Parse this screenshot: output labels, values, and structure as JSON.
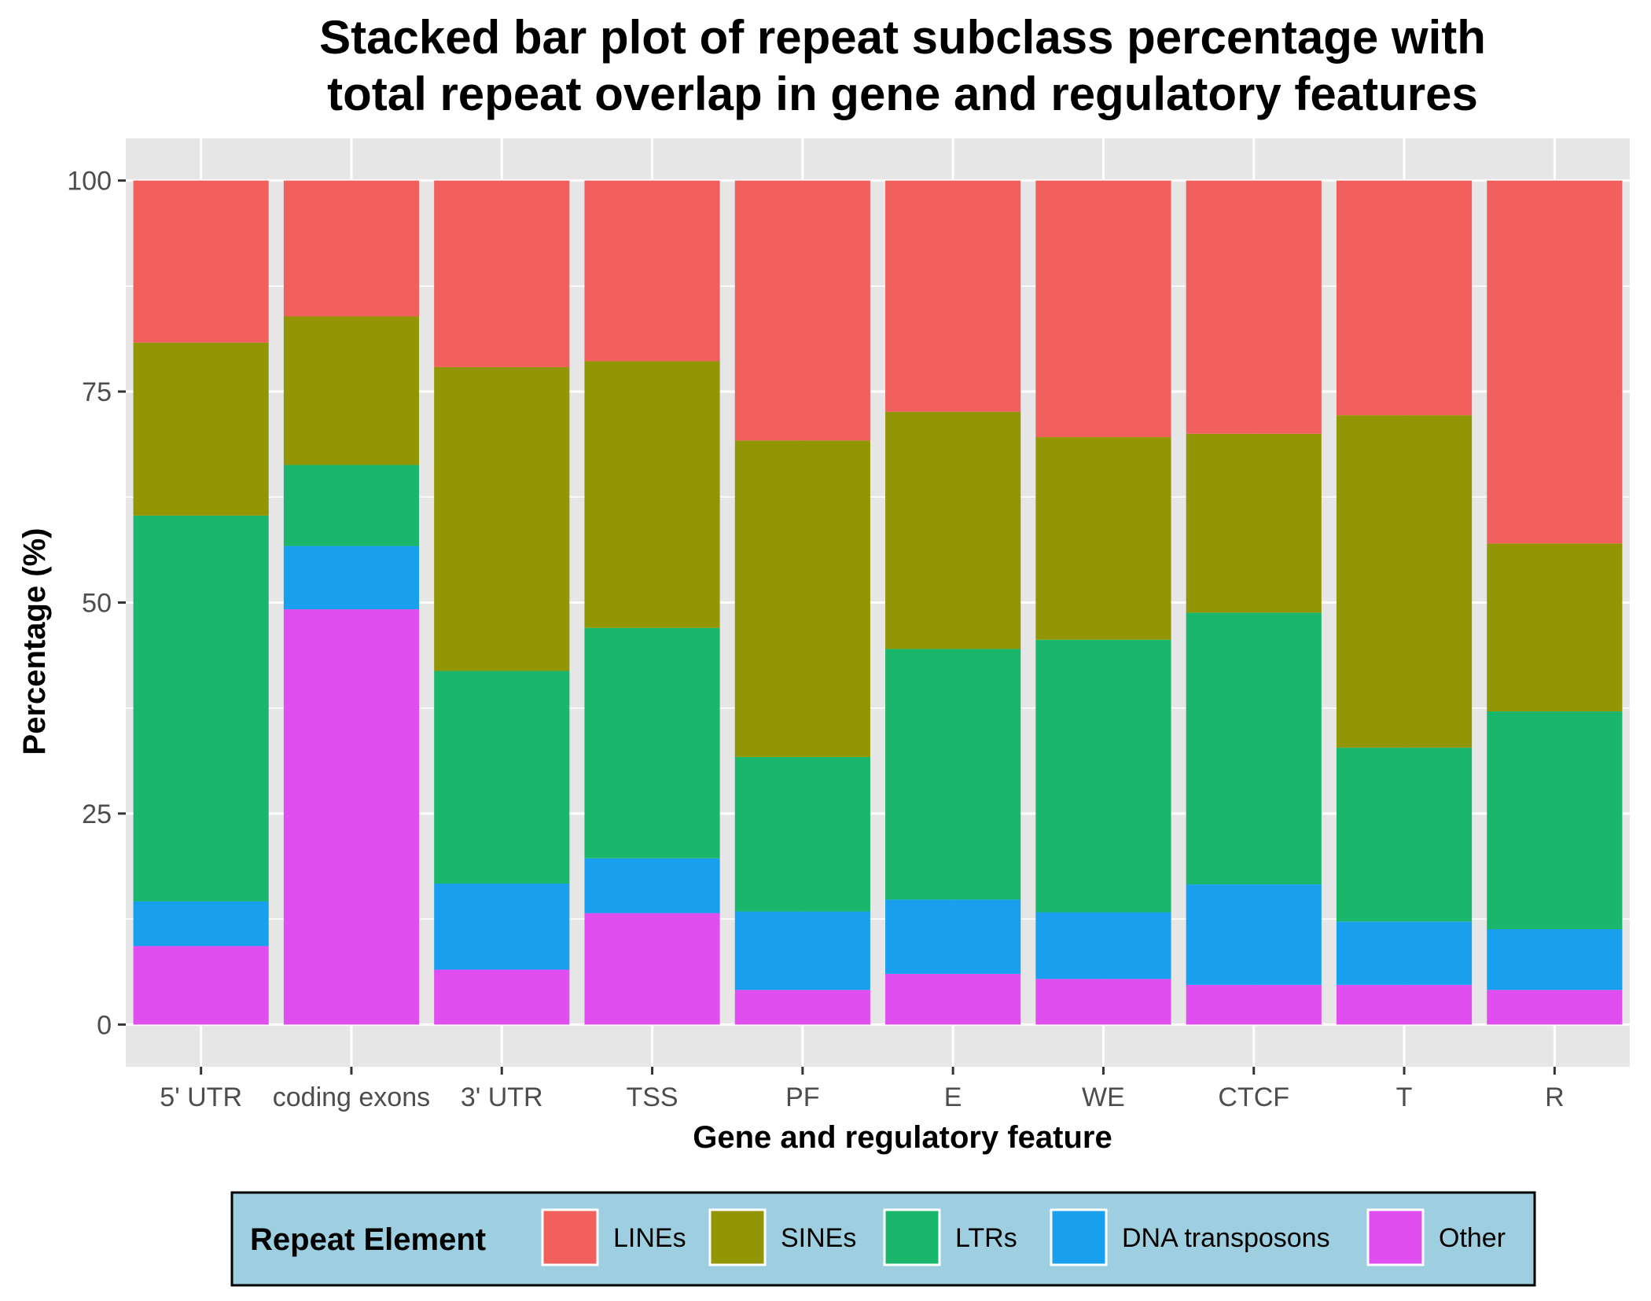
{
  "chart_data": {
    "type": "bar",
    "stacked": true,
    "title": "Stacked bar plot of repeat subclass percentage with total repeat overlap in gene and regulatory features",
    "title_lines": [
      "Stacked bar plot of repeat subclass percentage with",
      "total repeat overlap in gene and regulatory features"
    ],
    "xlabel": "Gene and regulatory feature",
    "ylabel": "Percentage (%)",
    "ylim": [
      -5,
      105
    ],
    "yticks": [
      0,
      25,
      50,
      75,
      100
    ],
    "grid": true,
    "categories": [
      "5' UTR",
      "coding exons",
      "3' UTR",
      "TSS",
      "PF",
      "E",
      "WE",
      "CTCF",
      "T",
      "R"
    ],
    "series": [
      {
        "name": "Other",
        "color": "#E14EF0",
        "values": [
          9.3,
          49.2,
          6.5,
          13.2,
          4.1,
          6.0,
          5.4,
          4.7,
          4.7,
          4.1
        ]
      },
      {
        "name": "DNA transposons",
        "color": "#18A0EE",
        "values": [
          5.3,
          7.5,
          10.2,
          6.5,
          9.3,
          8.8,
          7.9,
          11.9,
          7.5,
          7.2
        ]
      },
      {
        "name": "LTRs",
        "color": "#1AB66C",
        "values": [
          45.7,
          9.6,
          25.2,
          27.3,
          18.3,
          29.7,
          32.3,
          32.2,
          20.6,
          25.8
        ]
      },
      {
        "name": "SINEs",
        "color": "#929604",
        "values": [
          20.5,
          17.6,
          36.0,
          31.6,
          37.5,
          28.1,
          24.0,
          21.2,
          39.4,
          19.9
        ]
      },
      {
        "name": "LINEs",
        "color": "#F2605D",
        "values": [
          19.2,
          16.1,
          22.1,
          21.4,
          30.8,
          27.4,
          30.4,
          30.0,
          27.8,
          43.0
        ]
      }
    ],
    "legend": {
      "title": "Repeat Element",
      "position": "bottom",
      "order": [
        "LINEs",
        "SINEs",
        "LTRs",
        "DNA transposons",
        "Other"
      ]
    }
  }
}
